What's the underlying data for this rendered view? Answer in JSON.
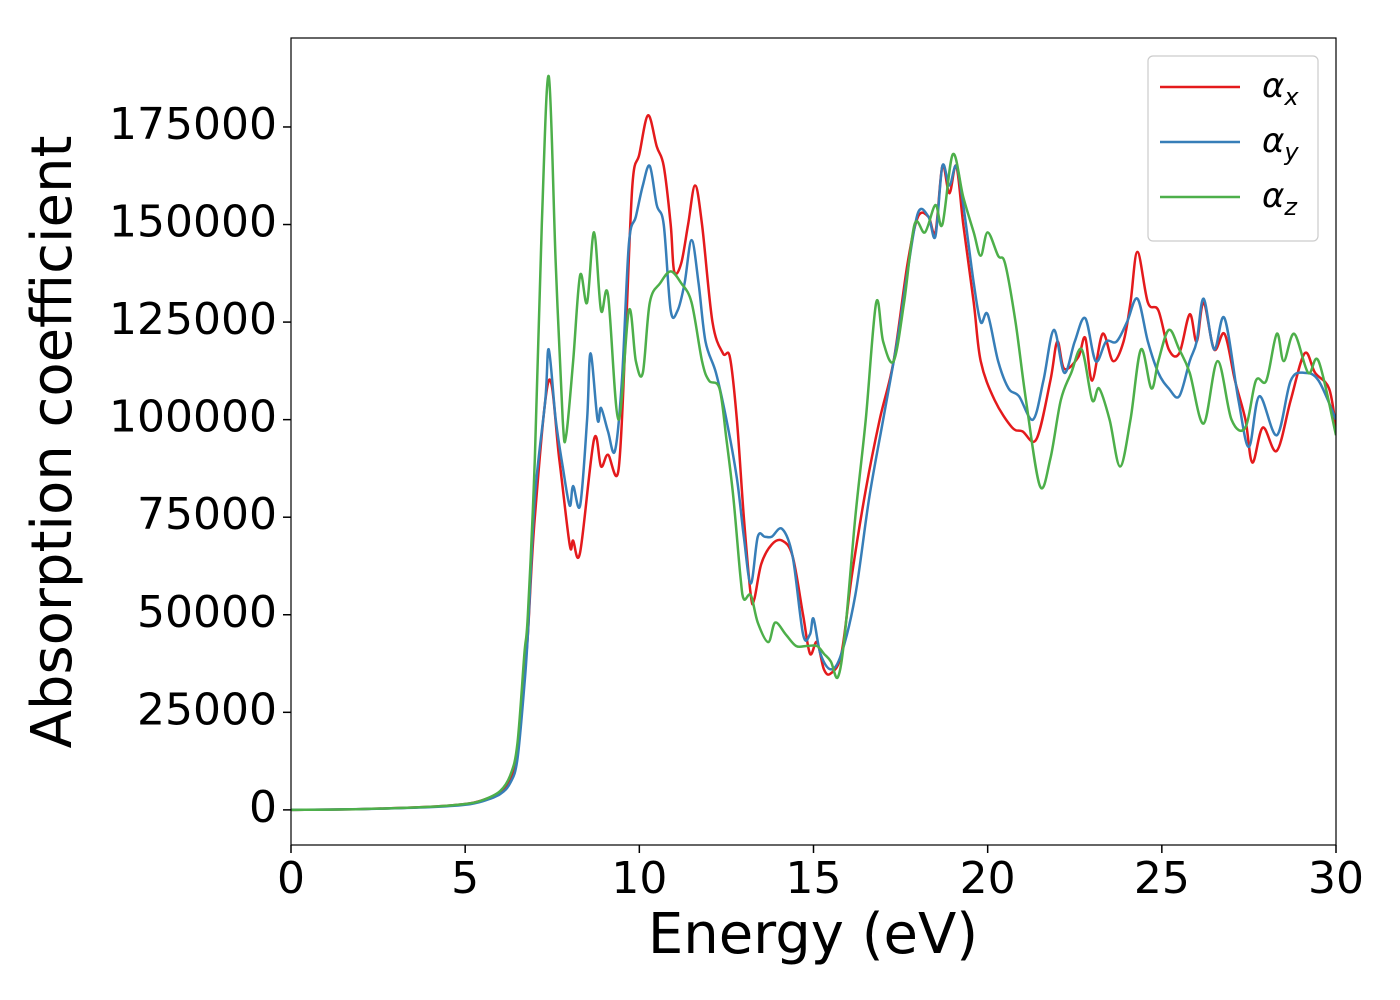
{
  "chart_data": {
    "type": "line",
    "xlabel": "Energy (eV)",
    "ylabel": "Absorption coefficient",
    "xlim": [
      0,
      30
    ],
    "xticks": [
      0,
      5,
      10,
      15,
      20,
      25,
      30
    ],
    "ylim": [
      -9000,
      197800
    ],
    "yticks": [
      0,
      25000,
      50000,
      75000,
      100000,
      125000,
      150000,
      175000
    ],
    "legend": "upper right",
    "series": [
      {
        "name": "αx",
        "color": "#e41a1c",
        "x": [
          0,
          2,
          4,
          5,
          5.5,
          6,
          6.3,
          6.5,
          6.7,
          6.8,
          7.0,
          7.4,
          7.7,
          8.0,
          8.1,
          8.3,
          8.7,
          8.9,
          9.1,
          9.4,
          9.6,
          9.8,
          10.0,
          10.25,
          10.5,
          10.7,
          10.9,
          11.0,
          11.2,
          11.4,
          11.6,
          11.8,
          12.1,
          12.4,
          12.6,
          12.8,
          13.0,
          13.2,
          13.3,
          13.5,
          13.8,
          14.1,
          14.4,
          14.7,
          14.9,
          15.1,
          15.3,
          15.5,
          15.8,
          16.1,
          16.5,
          16.9,
          17.3,
          17.7,
          18.0,
          18.3,
          18.5,
          18.7,
          18.9,
          19.1,
          19.3,
          19.6,
          19.8,
          20.2,
          20.7,
          21.0,
          21.4,
          21.8,
          22.0,
          22.2,
          22.6,
          22.8,
          23.0,
          23.3,
          23.6,
          23.9,
          24.1,
          24.3,
          24.6,
          24.9,
          25.2,
          25.5,
          25.8,
          26.0,
          26.2,
          26.5,
          26.8,
          27.1,
          27.4,
          27.6,
          27.9,
          28.3,
          28.7,
          29.1,
          29.4,
          29.8,
          30
        ],
        "values": [
          0,
          200,
          800,
          1500,
          2500,
          4500,
          8000,
          15000,
          35000,
          45000,
          75000,
          110000,
          90000,
          68000,
          69000,
          66000,
          95000,
          88000,
          91000,
          87000,
          120000,
          160000,
          168000,
          178000,
          170000,
          165000,
          150000,
          138000,
          140000,
          150000,
          160000,
          150000,
          125000,
          117000,
          116000,
          100000,
          75000,
          55000,
          54000,
          63000,
          68000,
          69000,
          65000,
          50000,
          40000,
          43000,
          36000,
          35000,
          40000,
          60000,
          82000,
          100000,
          115000,
          140000,
          152000,
          152000,
          148000,
          165000,
          158000,
          165000,
          150000,
          130000,
          115000,
          105000,
          98000,
          97000,
          95000,
          110000,
          120000,
          113000,
          116000,
          121000,
          110000,
          122000,
          115000,
          120000,
          130000,
          143000,
          130000,
          128000,
          118000,
          117000,
          127000,
          120000,
          130000,
          118000,
          122000,
          110000,
          100000,
          89000,
          98000,
          92000,
          105000,
          117000,
          112000,
          108000,
          98000
        ]
      },
      {
        "name": "αy",
        "color": "#377eb8",
        "x": [
          0,
          2,
          4,
          5,
          5.5,
          6,
          6.3,
          6.5,
          6.7,
          6.8,
          7.0,
          7.3,
          7.4,
          7.6,
          7.8,
          8.0,
          8.1,
          8.3,
          8.5,
          8.6,
          8.8,
          8.9,
          9.1,
          9.3,
          9.5,
          9.7,
          9.9,
          10.1,
          10.3,
          10.5,
          10.7,
          10.9,
          11.1,
          11.3,
          11.5,
          11.7,
          11.9,
          12.2,
          12.5,
          12.8,
          13.0,
          13.2,
          13.4,
          13.6,
          13.8,
          14.1,
          14.4,
          14.7,
          14.9,
          15.0,
          15.2,
          15.5,
          15.8,
          16.2,
          16.6,
          17.0,
          17.4,
          17.7,
          18.0,
          18.3,
          18.5,
          18.7,
          18.9,
          19.1,
          19.3,
          19.6,
          19.8,
          20.0,
          20.3,
          20.6,
          20.9,
          21.3,
          21.6,
          21.9,
          22.2,
          22.5,
          22.8,
          23.1,
          23.4,
          23.7,
          24.0,
          24.3,
          24.6,
          24.9,
          25.2,
          25.5,
          25.8,
          26.0,
          26.2,
          26.5,
          26.8,
          27.2,
          27.5,
          27.8,
          28.3,
          28.7,
          29.1,
          29.5,
          30
        ],
        "values": [
          0,
          200,
          700,
          1300,
          2200,
          4000,
          7000,
          13000,
          32000,
          45000,
          80000,
          105000,
          118000,
          100000,
          88000,
          78000,
          83000,
          78000,
          100000,
          117000,
          100000,
          103000,
          97000,
          92000,
          110000,
          145000,
          152000,
          160000,
          165000,
          155000,
          150000,
          128000,
          128000,
          135000,
          146000,
          135000,
          120000,
          112000,
          100000,
          85000,
          70000,
          58000,
          70000,
          70000,
          70000,
          72000,
          65000,
          45000,
          45000,
          49000,
          40000,
          36000,
          40000,
          55000,
          80000,
          100000,
          120000,
          138000,
          153000,
          152000,
          147000,
          165000,
          160000,
          165000,
          155000,
          135000,
          125000,
          127000,
          115000,
          108000,
          106000,
          100000,
          110000,
          123000,
          112000,
          120000,
          126000,
          115000,
          120000,
          120000,
          125000,
          131000,
          120000,
          112000,
          108000,
          106000,
          115000,
          120000,
          131000,
          118000,
          126000,
          105000,
          93000,
          106000,
          96000,
          110000,
          112000,
          110000,
          100000
        ]
      },
      {
        "name": "αz",
        "color": "#4daf4a",
        "x": [
          0,
          2,
          4,
          5,
          5.5,
          6,
          6.3,
          6.5,
          6.7,
          6.8,
          7.0,
          7.2,
          7.4,
          7.6,
          7.8,
          7.9,
          8.1,
          8.3,
          8.5,
          8.7,
          8.9,
          9.1,
          9.4,
          9.7,
          9.9,
          10.1,
          10.3,
          10.6,
          10.9,
          11.2,
          11.5,
          11.8,
          12.0,
          12.3,
          12.5,
          12.7,
          12.9,
          13.0,
          13.2,
          13.4,
          13.7,
          13.9,
          14.2,
          14.5,
          14.8,
          15.1,
          15.3,
          15.5,
          15.7,
          15.9,
          16.2,
          16.5,
          16.8,
          17.0,
          17.3,
          17.6,
          17.9,
          18.2,
          18.5,
          18.7,
          19.0,
          19.3,
          19.6,
          19.8,
          20.0,
          20.3,
          20.5,
          20.8,
          21.1,
          21.5,
          21.8,
          22.1,
          22.4,
          22.7,
          23.0,
          23.2,
          23.5,
          23.8,
          24.1,
          24.4,
          24.7,
          24.9,
          25.2,
          25.5,
          25.8,
          26.2,
          26.6,
          27.0,
          27.4,
          27.7,
          28.0,
          28.3,
          28.5,
          28.8,
          29.2,
          29.5,
          30
        ],
        "values": [
          0,
          200,
          800,
          1500,
          2500,
          4800,
          9000,
          17000,
          40000,
          50000,
          90000,
          150000,
          188000,
          140000,
          100000,
          96000,
          115000,
          137000,
          130000,
          148000,
          128000,
          132000,
          100000,
          128000,
          115000,
          112000,
          130000,
          135000,
          138000,
          135000,
          130000,
          115000,
          110000,
          108000,
          95000,
          80000,
          60000,
          54000,
          55000,
          48000,
          43000,
          48000,
          45000,
          42000,
          42000,
          42000,
          40000,
          38000,
          34000,
          45000,
          75000,
          100000,
          130000,
          120000,
          115000,
          130000,
          150000,
          148000,
          155000,
          150000,
          168000,
          157000,
          148000,
          142000,
          148000,
          142000,
          140000,
          125000,
          105000,
          83000,
          90000,
          105000,
          112000,
          118000,
          105000,
          108000,
          100000,
          88000,
          100000,
          118000,
          108000,
          115000,
          123000,
          118000,
          112000,
          99000,
          115000,
          100000,
          98000,
          110000,
          110000,
          122000,
          115000,
          122000,
          112000,
          115000,
          96000
        ]
      }
    ]
  }
}
